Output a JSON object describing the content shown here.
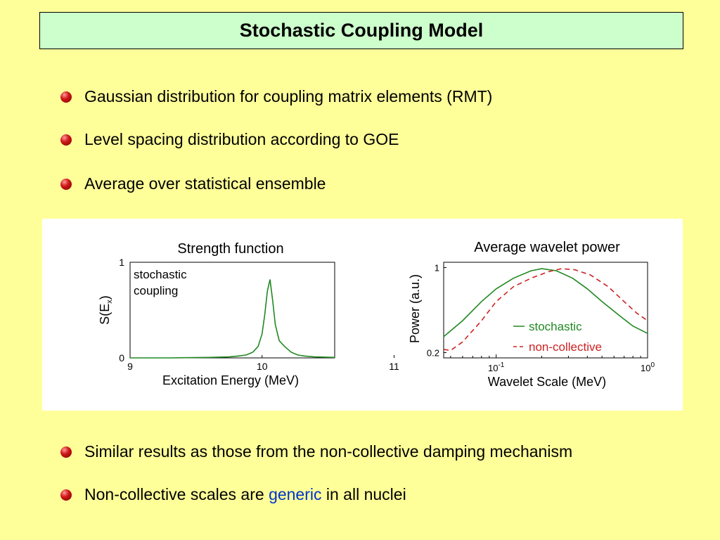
{
  "title": "Stochastic Coupling Model",
  "bullets_top": [
    "Gaussian distribution for coupling matrix elements (RMT)",
    "Level spacing distribution according to GOE",
    "Average over statistical ensemble"
  ],
  "bullets_bottom": [
    {
      "before": "Similar results as those from the non-collective damping mechanism",
      "highlight": "",
      "after": ""
    },
    {
      "before": "Non-collective scales are ",
      "highlight": "generic",
      "after": " in all nuclei"
    }
  ],
  "colors": {
    "background": "#ffff99",
    "title_box": "#ccffcc",
    "bullet": "#cc0000",
    "highlight": "#0033cc",
    "green": "#228822",
    "red": "#cc2222"
  },
  "chart_data": [
    {
      "type": "line",
      "title": "Strength function",
      "xlabel": "Excitation Energy (MeV)",
      "ylabel": "S(E",
      "ylabel_sub": "x",
      "ylabel_end": ")",
      "xlim": [
        9,
        10.55
      ],
      "ylim": [
        0,
        1
      ],
      "x_ticks": [
        "9",
        "10",
        "11"
      ],
      "y_ticks": [
        "0",
        "1"
      ],
      "annotation": [
        "stochastic",
        "coupling"
      ],
      "series": [
        {
          "color": "#228822",
          "points": [
            [
              9.0,
              0.0
            ],
            [
              9.3,
              0.0
            ],
            [
              9.6,
              0.005
            ],
            [
              9.75,
              0.01
            ],
            [
              9.82,
              0.02
            ],
            [
              9.88,
              0.03
            ],
            [
              9.93,
              0.06
            ],
            [
              9.97,
              0.12
            ],
            [
              10.0,
              0.25
            ],
            [
              10.02,
              0.45
            ],
            [
              10.04,
              0.7
            ],
            [
              10.06,
              0.82
            ],
            [
              10.08,
              0.6
            ],
            [
              10.1,
              0.35
            ],
            [
              10.13,
              0.18
            ],
            [
              10.17,
              0.12
            ],
            [
              10.22,
              0.06
            ],
            [
              10.27,
              0.03
            ],
            [
              10.32,
              0.02
            ],
            [
              10.4,
              0.01
            ],
            [
              10.55,
              0.005
            ]
          ]
        }
      ]
    },
    {
      "type": "line",
      "title": "Average wavelet power",
      "xlabel": "Wavelet Scale (MeV)",
      "ylabel": "Power (a.u.)",
      "x_log": true,
      "xlim": [
        0.045,
        1.0
      ],
      "ylim": [
        0.15,
        1.05
      ],
      "x_ticks": [
        {
          "base": "10",
          "exp": "-1",
          "value": 0.1
        },
        {
          "base": "10",
          "exp": "0",
          "value": 1.0
        }
      ],
      "y_ticks": [
        {
          "label": "0.2",
          "value": 0.2
        },
        {
          "label": "1",
          "value": 1.0
        }
      ],
      "series": [
        {
          "name": "stochastic",
          "color": "#228822",
          "dash": false,
          "points": [
            [
              0.045,
              0.35
            ],
            [
              0.06,
              0.5
            ],
            [
              0.08,
              0.68
            ],
            [
              0.1,
              0.8
            ],
            [
              0.13,
              0.9
            ],
            [
              0.17,
              0.97
            ],
            [
              0.2,
              0.99
            ],
            [
              0.25,
              0.97
            ],
            [
              0.32,
              0.9
            ],
            [
              0.4,
              0.8
            ],
            [
              0.5,
              0.68
            ],
            [
              0.65,
              0.55
            ],
            [
              0.8,
              0.45
            ],
            [
              1.0,
              0.38
            ]
          ]
        },
        {
          "name": "non-collective",
          "color": "#cc2222",
          "dash": true,
          "points": [
            [
              0.045,
              0.23
            ],
            [
              0.05,
              0.22
            ],
            [
              0.06,
              0.3
            ],
            [
              0.08,
              0.5
            ],
            [
              0.1,
              0.68
            ],
            [
              0.13,
              0.82
            ],
            [
              0.17,
              0.9
            ],
            [
              0.22,
              0.96
            ],
            [
              0.27,
              0.99
            ],
            [
              0.33,
              0.98
            ],
            [
              0.42,
              0.93
            ],
            [
              0.55,
              0.82
            ],
            [
              0.7,
              0.68
            ],
            [
              0.85,
              0.57
            ],
            [
              1.0,
              0.5
            ]
          ]
        }
      ]
    }
  ]
}
